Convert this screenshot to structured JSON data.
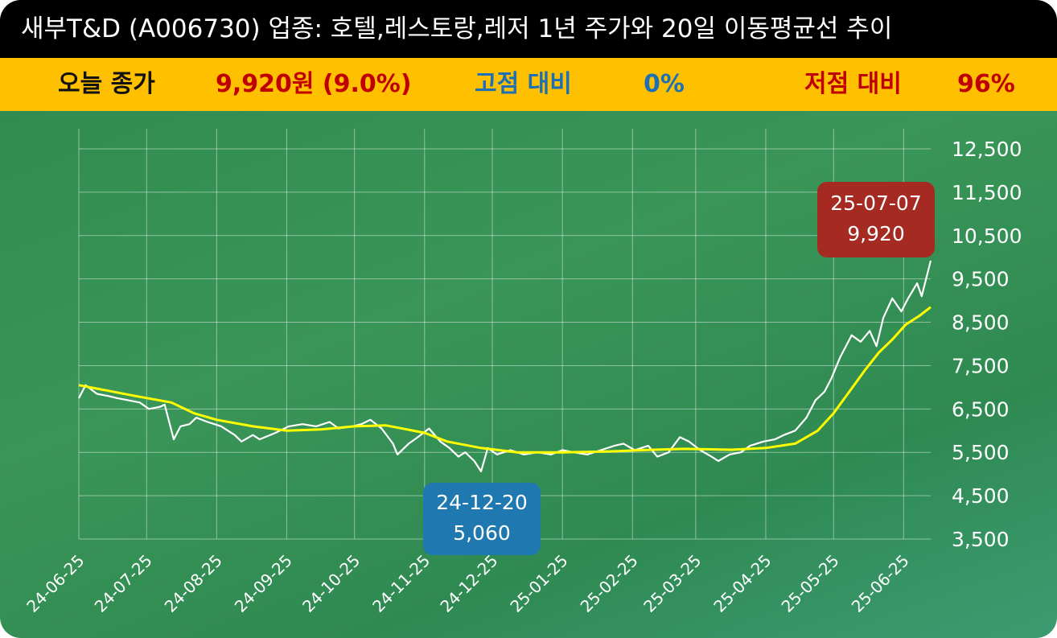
{
  "title": "새부T&D (A006730) 업종: 호텔,레스토랑,레저  1년 주가와 20일 이동평균선 추이",
  "stats": {
    "today_label": "오늘 종가",
    "today_value": "9,920원 (9.0%)",
    "high_label": "고점 대비",
    "high_value": "0%",
    "low_label": "저점 대비",
    "low_value": "96%"
  },
  "callouts": {
    "high": {
      "date": "25-07-07",
      "value": "9,920"
    },
    "low": {
      "date": "24-12-20",
      "value": "5,060"
    }
  },
  "colors": {
    "title_bg": "#000000",
    "stats_bg": "#ffc000",
    "chart_bg": "#2e8a4c",
    "price_line": "#ffffff",
    "ma_line": "#ffff00",
    "high_callout": "#a52a22",
    "low_callout": "#1f78b0"
  },
  "chart_data": {
    "type": "line",
    "title": "",
    "xlabel": "",
    "ylabel": "",
    "ylim": [
      3500,
      12500
    ],
    "yticks": [
      "12,500",
      "11,500",
      "10,500",
      "9,500",
      "8,500",
      "7,500",
      "6,500",
      "5,500",
      "4,500",
      "3,500"
    ],
    "ytick_values": [
      12500,
      11500,
      10500,
      9500,
      8500,
      7500,
      6500,
      5500,
      4500,
      3500
    ],
    "xticks": [
      "24-06-25",
      "24-07-25",
      "24-08-25",
      "24-09-25",
      "24-10-25",
      "24-11-25",
      "24-12-25",
      "25-01-25",
      "25-02-25",
      "25-03-25",
      "25-04-25",
      "25-05-25",
      "25-06-25"
    ],
    "x_start": "24-06-25",
    "x_end": "25-07-07",
    "grid": true,
    "series": [
      {
        "color": "#ffffff",
        "points": [
          [
            "24-06-25",
            6750
          ],
          [
            "24-06-28",
            7050
          ],
          [
            "24-07-03",
            6850
          ],
          [
            "24-07-08",
            6800
          ],
          [
            "24-07-12",
            6750
          ],
          [
            "24-07-17",
            6700
          ],
          [
            "24-07-22",
            6650
          ],
          [
            "24-07-26",
            6500
          ],
          [
            "24-07-31",
            6550
          ],
          [
            "24-08-02",
            6600
          ],
          [
            "24-08-06",
            5800
          ],
          [
            "24-08-09",
            6100
          ],
          [
            "24-08-13",
            6150
          ],
          [
            "24-08-16",
            6300
          ],
          [
            "24-08-21",
            6200
          ],
          [
            "24-08-27",
            6100
          ],
          [
            "24-09-02",
            5900
          ],
          [
            "24-09-05",
            5750
          ],
          [
            "24-09-10",
            5900
          ],
          [
            "24-09-13",
            5800
          ],
          [
            "24-09-20",
            5950
          ],
          [
            "24-09-26",
            6100
          ],
          [
            "24-10-02",
            6150
          ],
          [
            "24-10-08",
            6100
          ],
          [
            "24-10-14",
            6200
          ],
          [
            "24-10-18",
            6050
          ],
          [
            "24-10-24",
            6100
          ],
          [
            "24-10-28",
            6150
          ],
          [
            "24-11-01",
            6250
          ],
          [
            "24-11-06",
            6050
          ],
          [
            "24-11-11",
            5700
          ],
          [
            "24-11-13",
            5450
          ],
          [
            "24-11-18",
            5700
          ],
          [
            "24-11-22",
            5850
          ],
          [
            "24-11-27",
            6050
          ],
          [
            "24-12-02",
            5750
          ],
          [
            "24-12-06",
            5600
          ],
          [
            "24-12-10",
            5400
          ],
          [
            "24-12-13",
            5500
          ],
          [
            "24-12-17",
            5300
          ],
          [
            "24-12-20",
            5060
          ],
          [
            "24-12-23",
            5600
          ],
          [
            "24-12-27",
            5450
          ],
          [
            "25-01-02",
            5550
          ],
          [
            "25-01-08",
            5450
          ],
          [
            "25-01-14",
            5500
          ],
          [
            "25-01-20",
            5450
          ],
          [
            "25-01-25",
            5550
          ],
          [
            "25-01-30",
            5500
          ],
          [
            "25-02-05",
            5450
          ],
          [
            "25-02-11",
            5550
          ],
          [
            "25-02-17",
            5650
          ],
          [
            "25-02-21",
            5700
          ],
          [
            "25-02-26",
            5550
          ],
          [
            "25-03-04",
            5650
          ],
          [
            "25-03-08",
            5400
          ],
          [
            "25-03-13",
            5500
          ],
          [
            "25-03-18",
            5850
          ],
          [
            "25-03-22",
            5750
          ],
          [
            "25-03-27",
            5550
          ],
          [
            "25-04-01",
            5400
          ],
          [
            "25-04-04",
            5300
          ],
          [
            "25-04-09",
            5450
          ],
          [
            "25-04-14",
            5500
          ],
          [
            "25-04-18",
            5650
          ],
          [
            "25-04-24",
            5750
          ],
          [
            "25-04-29",
            5800
          ],
          [
            "25-05-03",
            5900
          ],
          [
            "25-05-08",
            6000
          ],
          [
            "25-05-13",
            6300
          ],
          [
            "25-05-17",
            6700
          ],
          [
            "25-05-21",
            6900
          ],
          [
            "25-05-24",
            7200
          ],
          [
            "25-05-28",
            7700
          ],
          [
            "25-06-02",
            8200
          ],
          [
            "25-06-06",
            8050
          ],
          [
            "25-06-10",
            8300
          ],
          [
            "25-06-13",
            7950
          ],
          [
            "25-06-16",
            8600
          ],
          [
            "25-06-20",
            9050
          ],
          [
            "25-06-24",
            8750
          ],
          [
            "25-06-27",
            9050
          ],
          [
            "25-07-01",
            9400
          ],
          [
            "25-07-03",
            9100
          ],
          [
            "25-07-07",
            9920
          ]
        ]
      },
      {
        "color": "#ffff00",
        "points": [
          [
            "24-06-25",
            7050
          ],
          [
            "24-07-05",
            6950
          ],
          [
            "24-07-20",
            6800
          ],
          [
            "24-08-05",
            6650
          ],
          [
            "24-08-15",
            6400
          ],
          [
            "24-08-25",
            6250
          ],
          [
            "24-09-10",
            6100
          ],
          [
            "24-09-25",
            6000
          ],
          [
            "24-10-10",
            6030
          ],
          [
            "24-10-25",
            6100
          ],
          [
            "24-11-08",
            6120
          ],
          [
            "24-11-25",
            5950
          ],
          [
            "24-12-05",
            5750
          ],
          [
            "24-12-20",
            5600
          ],
          [
            "25-01-05",
            5500
          ],
          [
            "25-01-25",
            5500
          ],
          [
            "25-02-15",
            5520
          ],
          [
            "25-03-01",
            5550
          ],
          [
            "25-03-20",
            5580
          ],
          [
            "25-04-10",
            5560
          ],
          [
            "25-04-25",
            5600
          ],
          [
            "25-05-08",
            5700
          ],
          [
            "25-05-18",
            6000
          ],
          [
            "25-05-25",
            6400
          ],
          [
            "25-06-01",
            6900
          ],
          [
            "25-06-08",
            7400
          ],
          [
            "25-06-14",
            7800
          ],
          [
            "25-06-20",
            8100
          ],
          [
            "25-06-26",
            8450
          ],
          [
            "25-07-02",
            8650
          ],
          [
            "25-07-07",
            8850
          ]
        ]
      }
    ]
  }
}
